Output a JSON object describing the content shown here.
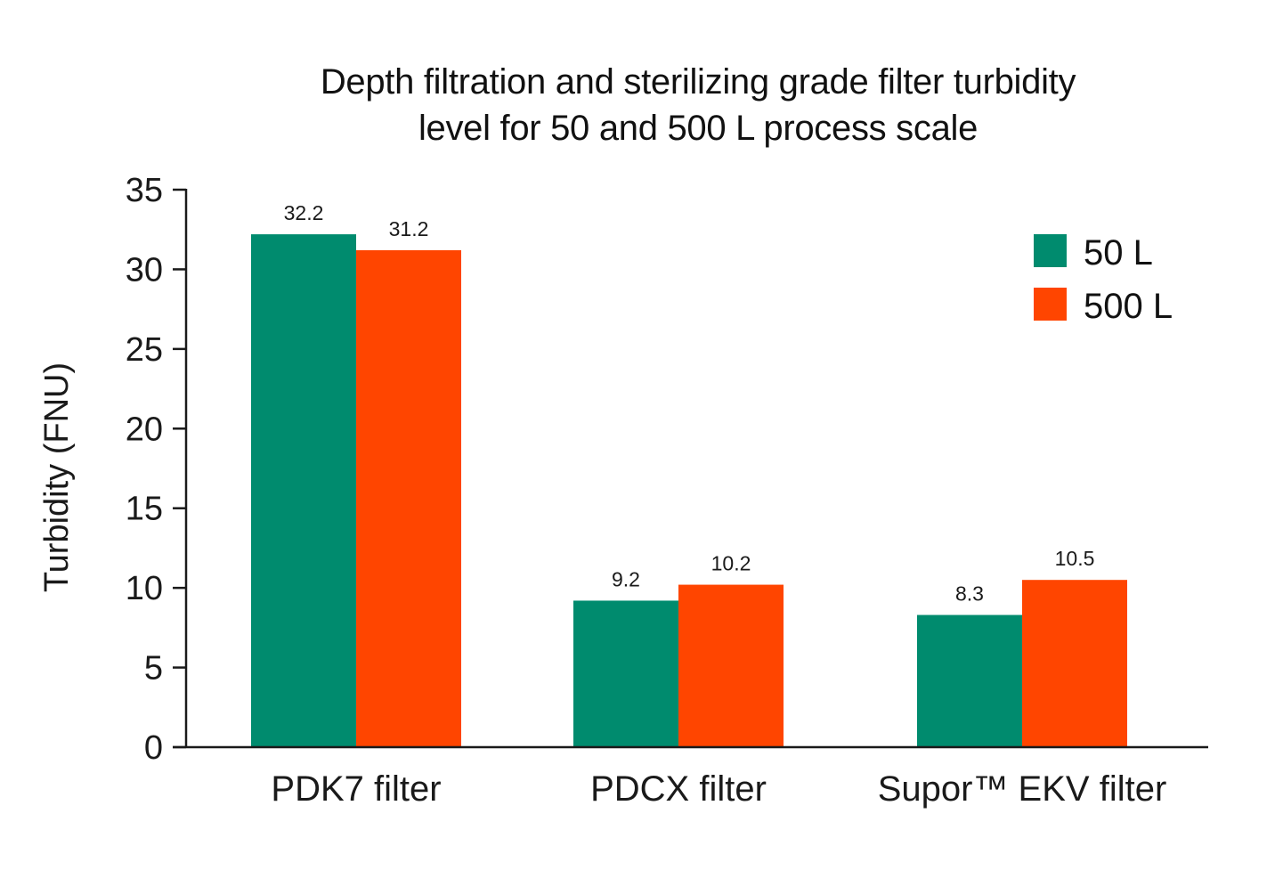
{
  "chart_data": {
    "type": "bar",
    "title_lines": [
      "Depth filtration and sterilizing grade filter turbidity",
      "level for 50 and 500 L process scale"
    ],
    "title": "Depth filtration and sterilizing grade filter turbidity level for 50 and 500 L process scale",
    "xlabel": "",
    "ylabel": "Turbidity (FNU)",
    "ylim": [
      0,
      35
    ],
    "yticks": [
      0,
      5,
      10,
      15,
      20,
      25,
      30,
      35
    ],
    "grid": false,
    "legend_position": "top-right",
    "categories": [
      "PDK7 filter",
      "PDCX filter",
      "Supor™ EKV filter"
    ],
    "series": [
      {
        "name": "50 L",
        "color": "#008B6E",
        "values": [
          32.2,
          9.2,
          8.3
        ],
        "labels": [
          "32.2",
          "9.2",
          "8.3"
        ]
      },
      {
        "name": "500 L",
        "color": "#FF4500",
        "values": [
          31.2,
          10.2,
          10.5
        ],
        "labels": [
          "31.2",
          "10.2",
          "10.5"
        ]
      }
    ]
  }
}
